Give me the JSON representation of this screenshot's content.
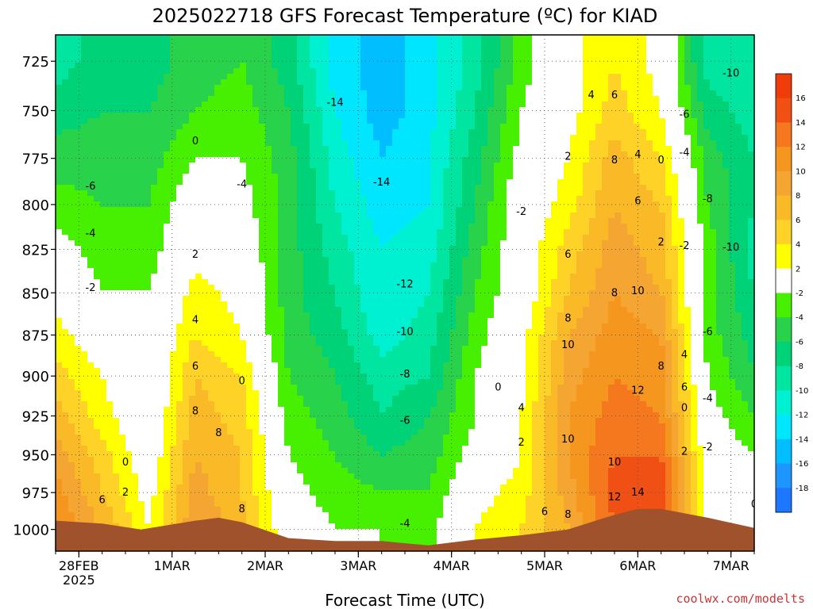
{
  "page": {
    "title": "2025022718 GFS Forecast Temperature (ºC) for KIAD",
    "credit": "coolwx.com/modelts"
  },
  "chart_data": {
    "type": "heatmap",
    "title": "2025022718 GFS Forecast Temperature (ºC) for KIAD",
    "xlabel": "Forecast Time (UTC)",
    "ylabel": "",
    "y_scale": "pressure (reversed)",
    "ylim": [
      712,
      1015
    ],
    "y_ticks": [
      "725",
      "750",
      "775",
      "800",
      "825",
      "850",
      "875",
      "900",
      "925",
      "950",
      "975",
      "1000"
    ],
    "x_ticks": [
      {
        "label": "28FEB",
        "sublabel": "2025"
      },
      {
        "label": "1MAR",
        "sublabel": ""
      },
      {
        "label": "2MAR",
        "sublabel": ""
      },
      {
        "label": "3MAR",
        "sublabel": ""
      },
      {
        "label": "4MAR",
        "sublabel": ""
      },
      {
        "label": "5MAR",
        "sublabel": ""
      },
      {
        "label": "6MAR",
        "sublabel": ""
      },
      {
        "label": "7MAR",
        "sublabel": ""
      }
    ],
    "xlim": [
      "2025-02-27T18:00Z",
      "2025-03-07T06:00Z"
    ],
    "grid": true,
    "colorbar": {
      "labels": [
        "16",
        "14",
        "12",
        "10",
        "8",
        "6",
        "4",
        "2",
        "-2",
        "-4",
        "-6",
        "-8",
        "-10",
        "-12",
        "-14",
        "-16",
        "-18"
      ],
      "bins": [
        {
          "from": 16,
          "to": 18,
          "color": "#f03c0a"
        },
        {
          "from": 14,
          "to": 16,
          "color": "#f05014"
        },
        {
          "from": 12,
          "to": 14,
          "color": "#f5781e"
        },
        {
          "from": 10,
          "to": 12,
          "color": "#f5961e"
        },
        {
          "from": 8,
          "to": 10,
          "color": "#f5a532"
        },
        {
          "from": 6,
          "to": 8,
          "color": "#faba28"
        },
        {
          "from": 4,
          "to": 6,
          "color": "#ffd228"
        },
        {
          "from": 2,
          "to": 4,
          "color": "#ffff00"
        },
        {
          "from": -2,
          "to": 2,
          "color": "#ffffff"
        },
        {
          "from": -4,
          "to": -2,
          "color": "#46f000"
        },
        {
          "from": -6,
          "to": -4,
          "color": "#28d24b"
        },
        {
          "from": -8,
          "to": -6,
          "color": "#00d278"
        },
        {
          "from": -10,
          "to": -8,
          "color": "#00e6a0"
        },
        {
          "from": -12,
          "to": -10,
          "color": "#00f0d2"
        },
        {
          "from": -14,
          "to": -12,
          "color": "#00e6ff"
        },
        {
          "from": -16,
          "to": -14,
          "color": "#00beff"
        },
        {
          "from": -18,
          "to": -16,
          "color": "#1e96ff"
        },
        {
          "from": -20,
          "to": -18,
          "color": "#1e78ff"
        }
      ]
    },
    "terrain_color": "#a0522d",
    "zero_contour_color": "#b4145a",
    "temperature_field": {
      "levels": [
        725,
        750,
        775,
        800,
        825,
        850,
        875,
        900,
        925,
        950,
        975,
        1000
      ],
      "times": [
        "2025-02-27T18:00Z",
        "2025-02-28T06:00Z",
        "2025-02-28T18:00Z",
        "2025-03-01T06:00Z",
        "2025-03-01T18:00Z",
        "2025-03-02T06:00Z",
        "2025-03-02T18:00Z",
        "2025-03-03T06:00Z",
        "2025-03-03T18:00Z",
        "2025-03-04T06:00Z",
        "2025-03-04T18:00Z",
        "2025-03-05T06:00Z",
        "2025-03-05T18:00Z",
        "2025-03-06T06:00Z",
        "2025-03-06T18:00Z",
        "2025-03-07T06:00Z"
      ],
      "values": [
        [
          -9,
          -7,
          -7,
          -5,
          -4,
          -7,
          -13,
          -15,
          -13,
          -9,
          -3,
          1,
          4,
          1,
          -9,
          -10
        ],
        [
          -7,
          -6,
          -6,
          -4,
          -3,
          -6,
          -12,
          -15,
          -13,
          -8,
          -2,
          1,
          5,
          2,
          -7,
          -9
        ],
        [
          -5,
          -5,
          -5,
          -2,
          -2,
          -5,
          -11,
          -14,
          -12,
          -7,
          -1,
          2,
          7,
          4,
          -5,
          -8
        ],
        [
          -3,
          -4,
          -4,
          0,
          -1,
          -5,
          -10,
          -13,
          -12,
          -6,
          0,
          3,
          8,
          6,
          -4,
          -8
        ],
        [
          -1,
          -3,
          -3,
          1,
          0,
          -5,
          -9,
          -12,
          -11,
          -5,
          0,
          5,
          9,
          7,
          -3,
          -9
        ],
        [
          1,
          -2,
          -2,
          3,
          1,
          -5,
          -8,
          -12,
          -10,
          -4,
          0,
          6,
          10,
          8,
          -3,
          -8
        ],
        [
          3,
          0,
          -1,
          4,
          2,
          -5,
          -7,
          -11,
          -9,
          -3,
          1,
          8,
          11,
          10,
          -3,
          -7
        ],
        [
          5,
          2,
          -1,
          6,
          4,
          -4,
          -6,
          -9,
          -8,
          -2,
          1,
          9,
          12,
          11,
          -2,
          -6
        ],
        [
          7,
          3,
          -1,
          7,
          5,
          -3,
          -5,
          -8,
          -6,
          -2,
          2,
          10,
          13,
          12,
          -1,
          -4
        ],
        [
          9,
          5,
          0,
          8,
          6,
          -2,
          -4,
          -6,
          -5,
          -1,
          2,
          10,
          14,
          14,
          0,
          -2
        ],
        [
          11,
          6,
          1,
          9,
          6,
          -1,
          -3,
          -4,
          -4,
          1,
          3,
          9,
          15,
          16,
          1,
          0
        ],
        [
          12,
          8,
          2,
          10,
          7,
          0,
          -2,
          -2,
          -3,
          2,
          4,
          8,
          14,
          16,
          2,
          1
        ]
      ]
    },
    "terrain": [
      {
        "t": "2025-02-27T18:00Z",
        "p": 994
      },
      {
        "t": "2025-02-28T06:00Z",
        "p": 996
      },
      {
        "t": "2025-02-28T16:00Z",
        "p": 1000
      },
      {
        "t": "2025-03-01T06:00Z",
        "p": 994
      },
      {
        "t": "2025-03-01T12:00Z",
        "p": 992
      },
      {
        "t": "2025-03-01T18:00Z",
        "p": 995
      },
      {
        "t": "2025-03-02T06:00Z",
        "p": 1006
      },
      {
        "t": "2025-03-02T18:00Z",
        "p": 1008
      },
      {
        "t": "2025-03-03T06:00Z",
        "p": 1008
      },
      {
        "t": "2025-03-03T18:00Z",
        "p": 1011
      },
      {
        "t": "2025-03-04T06:00Z",
        "p": 1007
      },
      {
        "t": "2025-03-04T18:00Z",
        "p": 1004
      },
      {
        "t": "2025-03-05T06:00Z",
        "p": 1000
      },
      {
        "t": "2025-03-05T18:00Z",
        "p": 990
      },
      {
        "t": "2025-03-06T00:00Z",
        "p": 986
      },
      {
        "t": "2025-03-06T06:00Z",
        "p": 986
      },
      {
        "t": "2025-03-06T18:00Z",
        "p": 992
      },
      {
        "t": "2025-03-07T06:00Z",
        "p": 999
      }
    ],
    "contour_labels": [
      {
        "text": "0",
        "t": "2025-02-28T12:00Z",
        "p": 955
      },
      {
        "text": "2",
        "t": "2025-02-28T12:00Z",
        "p": 975
      },
      {
        "text": "6",
        "t": "2025-02-28T06:00Z",
        "p": 980
      },
      {
        "text": "-2",
        "t": "2025-02-28T03:00Z",
        "p": 847
      },
      {
        "text": "-4",
        "t": "2025-02-28T03:00Z",
        "p": 816
      },
      {
        "text": "-6",
        "t": "2025-02-28T03:00Z",
        "p": 790
      },
      {
        "text": "0",
        "t": "2025-03-01T06:00Z",
        "p": 766
      },
      {
        "text": "-4",
        "t": "2025-03-01T18:00Z",
        "p": 789
      },
      {
        "text": "2",
        "t": "2025-03-01T06:00Z",
        "p": 828
      },
      {
        "text": "4",
        "t": "2025-03-01T06:00Z",
        "p": 866
      },
      {
        "text": "6",
        "t": "2025-03-01T06:00Z",
        "p": 894
      },
      {
        "text": "0",
        "t": "2025-03-01T18:00Z",
        "p": 903
      },
      {
        "text": "8",
        "t": "2025-03-01T06:00Z",
        "p": 922
      },
      {
        "text": "8",
        "t": "2025-03-01T12:00Z",
        "p": 936
      },
      {
        "text": "8",
        "t": "2025-03-01T18:00Z",
        "p": 986
      },
      {
        "text": "-14",
        "t": "2025-03-02T18:00Z",
        "p": 746
      },
      {
        "text": "-14",
        "t": "2025-03-03T06:00Z",
        "p": 788
      },
      {
        "text": "-12",
        "t": "2025-03-03T12:00Z",
        "p": 845
      },
      {
        "text": "-10",
        "t": "2025-03-03T12:00Z",
        "p": 873
      },
      {
        "text": "-8",
        "t": "2025-03-03T12:00Z",
        "p": 899
      },
      {
        "text": "-6",
        "t": "2025-03-03T12:00Z",
        "p": 928
      },
      {
        "text": "-4",
        "t": "2025-03-03T12:00Z",
        "p": 996
      },
      {
        "text": "-2",
        "t": "2025-03-04T18:00Z",
        "p": 804
      },
      {
        "text": "0",
        "t": "2025-03-04T12:00Z",
        "p": 907
      },
      {
        "text": "2",
        "t": "2025-03-04T18:00Z",
        "p": 942
      },
      {
        "text": "4",
        "t": "2025-03-04T18:00Z",
        "p": 920
      },
      {
        "text": "2",
        "t": "2025-03-05T06:00Z",
        "p": 774
      },
      {
        "text": "4",
        "t": "2025-03-05T12:00Z",
        "p": 742
      },
      {
        "text": "6",
        "t": "2025-03-05T18:00Z",
        "p": 742
      },
      {
        "text": "6",
        "t": "2025-03-05T06:00Z",
        "p": 828
      },
      {
        "text": "8",
        "t": "2025-03-05T06:00Z",
        "p": 865
      },
      {
        "text": "10",
        "t": "2025-03-05T06:00Z",
        "p": 881
      },
      {
        "text": "10",
        "t": "2025-03-05T06:00Z",
        "p": 940
      },
      {
        "text": "6",
        "t": "2025-03-05T00:00Z",
        "p": 988
      },
      {
        "text": "8",
        "t": "2025-03-05T06:00Z",
        "p": 990
      },
      {
        "text": "8",
        "t": "2025-03-05T18:00Z",
        "p": 776
      },
      {
        "text": "8",
        "t": "2025-03-05T18:00Z",
        "p": 850
      },
      {
        "text": "10",
        "t": "2025-03-05T18:00Z",
        "p": 955
      },
      {
        "text": "12",
        "t": "2025-03-05T18:00Z",
        "p": 978
      },
      {
        "text": "14",
        "t": "2025-03-06T00:00Z",
        "p": 975
      },
      {
        "text": "4",
        "t": "2025-03-06T00:00Z",
        "p": 773
      },
      {
        "text": "0",
        "t": "2025-03-06T06:00Z",
        "p": 776
      },
      {
        "text": "6",
        "t": "2025-03-06T00:00Z",
        "p": 798
      },
      {
        "text": "2",
        "t": "2025-03-06T06:00Z",
        "p": 821
      },
      {
        "text": "10",
        "t": "2025-03-06T00:00Z",
        "p": 849
      },
      {
        "text": "4",
        "t": "2025-03-06T12:00Z",
        "p": 887
      },
      {
        "text": "8",
        "t": "2025-03-06T06:00Z",
        "p": 894
      },
      {
        "text": "12",
        "t": "2025-03-06T00:00Z",
        "p": 909
      },
      {
        "text": "6",
        "t": "2025-03-06T12:00Z",
        "p": 907
      },
      {
        "text": "0",
        "t": "2025-03-06T12:00Z",
        "p": 920
      },
      {
        "text": "2",
        "t": "2025-03-06T12:00Z",
        "p": 948
      },
      {
        "text": "-6",
        "t": "2025-03-06T12:00Z",
        "p": 752
      },
      {
        "text": "-4",
        "t": "2025-03-06T12:00Z",
        "p": 772
      },
      {
        "text": "-8",
        "t": "2025-03-06T18:00Z",
        "p": 797
      },
      {
        "text": "-2",
        "t": "2025-03-06T12:00Z",
        "p": 823
      },
      {
        "text": "-10",
        "t": "2025-03-07T00:00Z",
        "p": 824
      },
      {
        "text": "-10",
        "t": "2025-03-07T00:00Z",
        "p": 731
      },
      {
        "text": "-6",
        "t": "2025-03-06T18:00Z",
        "p": 873
      },
      {
        "text": "-4",
        "t": "2025-03-06T18:00Z",
        "p": 914
      },
      {
        "text": "-2",
        "t": "2025-03-06T18:00Z",
        "p": 945
      },
      {
        "text": "0",
        "t": "2025-03-07T06:00Z",
        "p": 983
      }
    ]
  }
}
